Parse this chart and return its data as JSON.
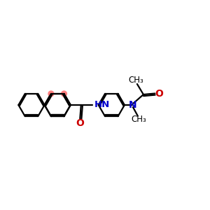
{
  "bg_color": "#ffffff",
  "bond_color": "#000000",
  "N_color": "#0000cc",
  "O_color": "#cc0000",
  "highlight_color": "#ff8080",
  "line_width": 1.6,
  "figsize": [
    3.0,
    3.0
  ],
  "dpi": 100,
  "xlim": [
    0,
    10
  ],
  "ylim": [
    2,
    8
  ]
}
